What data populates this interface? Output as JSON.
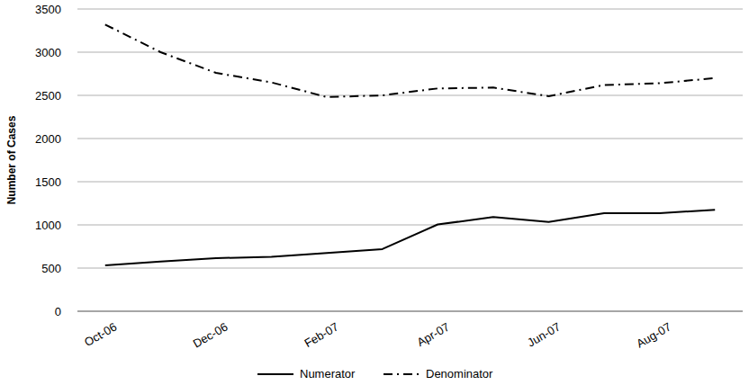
{
  "chart_data": {
    "type": "line",
    "y_label": "Number of Cases",
    "categories": [
      "Oct-06",
      null,
      "Dec-06",
      null,
      "Feb-07",
      null,
      "Apr-07",
      null,
      "Jun-07",
      null,
      "Aug-07",
      null
    ],
    "series": [
      {
        "name": "Numerator",
        "color": "#000000",
        "line_style": "solid",
        "values": [
          530,
          575,
          615,
          630,
          675,
          720,
          1005,
          1090,
          1035,
          1135,
          1135,
          1175
        ]
      },
      {
        "name": "Denominator",
        "color": "#000000",
        "line_style": "dashdot",
        "values": [
          3320,
          3000,
          2760,
          2650,
          2480,
          2500,
          2580,
          2590,
          2490,
          2620,
          2640,
          2700
        ]
      }
    ],
    "ylim": [
      0,
      3500
    ],
    "yticks": [
      0,
      500,
      1000,
      1500,
      2000,
      2500,
      3000,
      3500
    ],
    "grid": true,
    "legend": "bottom"
  }
}
